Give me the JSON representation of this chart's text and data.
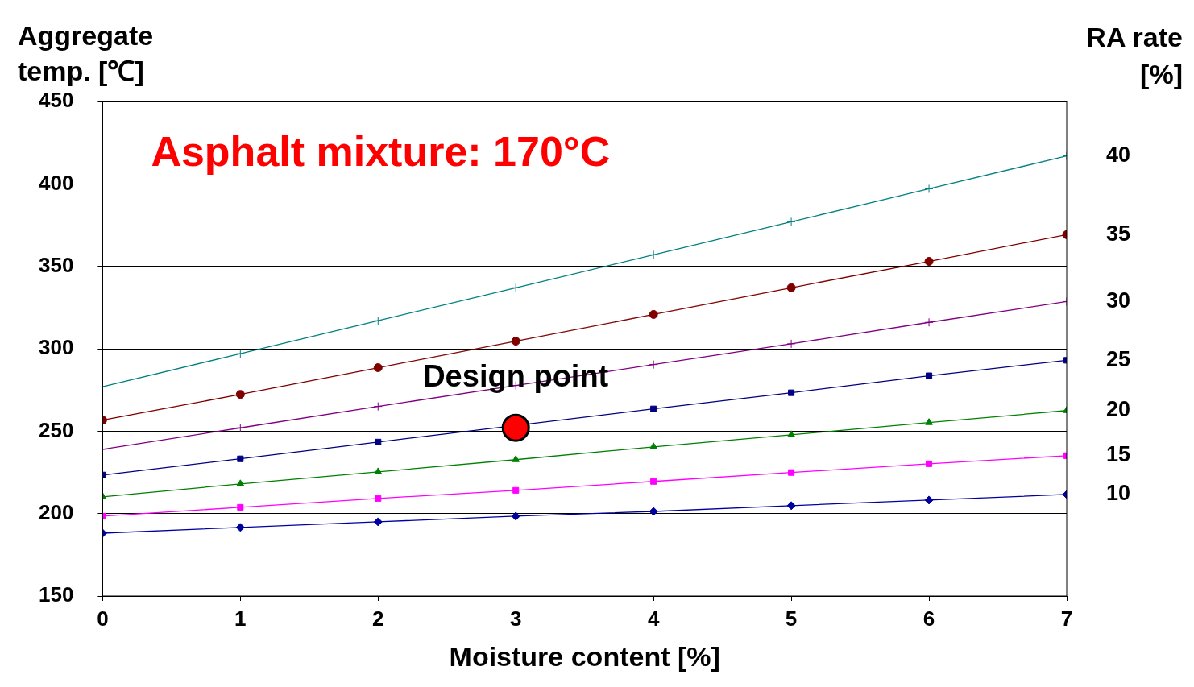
{
  "chart_data": {
    "type": "line",
    "ylabel": "Aggregate temp. [℃]",
    "y2label": "RA rate [%]",
    "xlabel": "Moisture content [%]",
    "annotations": [
      "Asphalt mixture: 170°C"
    ],
    "x": [
      0,
      1,
      2,
      3,
      4,
      5,
      6,
      7
    ],
    "xlim": [
      0,
      7
    ],
    "xticks": [
      0,
      1,
      2,
      3,
      4,
      5,
      6,
      7
    ],
    "ylim": [
      150,
      450
    ],
    "yticks": [
      150,
      200,
      250,
      300,
      350,
      400,
      450
    ],
    "grid": "y",
    "legend": false,
    "series": [
      {
        "name": "40",
        "color": "#008080",
        "marker": "cross",
        "values": [
          277,
          297,
          317,
          337,
          357,
          377,
          397,
          417
        ]
      },
      {
        "name": "35",
        "color": "#800000",
        "marker": "circle",
        "values": [
          256.7,
          272.3,
          288.5,
          304.6,
          320.8,
          337,
          353,
          369.2
        ]
      },
      {
        "name": "30",
        "color": "#800080",
        "marker": "cross",
        "values": [
          239,
          252,
          265,
          277.7,
          290.4,
          303,
          316,
          328.6
        ]
      },
      {
        "name": "25",
        "color": "#000080",
        "marker": "square",
        "values": [
          223.4,
          233.2,
          243.4,
          null,
          263.5,
          273.3,
          283.6,
          293
        ]
      },
      {
        "name": "20",
        "color": "#008000",
        "marker": "triangle",
        "values": [
          210.2,
          218,
          225.3,
          232.7,
          240.5,
          247.8,
          255.2,
          262.5
        ]
      },
      {
        "name": "15",
        "color": "#ff00ff",
        "marker": "square",
        "values": [
          198.4,
          203.8,
          209.2,
          214.1,
          219.5,
          224.9,
          230.2,
          235.1
        ]
      },
      {
        "name": "10",
        "color": "#0000a0",
        "marker": "diamond",
        "values": [
          188.1,
          191.6,
          195,
          198.4,
          201.3,
          204.8,
          208.2,
          211.6
        ]
      },
      {
        "name": "Design point",
        "type": "scatter",
        "color": "#ff0000",
        "marker": "circle",
        "x": [
          3
        ],
        "values": [
          252
        ]
      }
    ]
  }
}
